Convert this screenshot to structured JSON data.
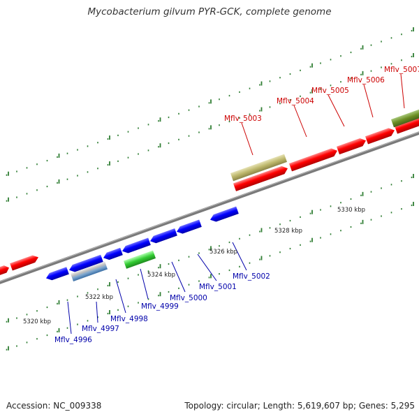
{
  "header": {
    "title": "Mycobacterium gilvum PYR-GCK, complete genome"
  },
  "footer": {
    "accession": "Accession: NC_009338",
    "summary": "Topology: circular; Length: 5,619,607 bp; Genes: 5,295"
  },
  "colors": {
    "forward_gene": "#ff0000",
    "reverse_gene": "#0000ff",
    "forward_label": "#cc0000",
    "reverse_label": "#0000aa",
    "tick": "#2e7d32",
    "backbone": "#7a7a7a"
  },
  "scale": {
    "unit": "kbp",
    "ticks": [
      {
        "label": "5320 kbp",
        "value": 5320
      },
      {
        "label": "5322 kbp",
        "value": 5322
      },
      {
        "label": "5324 kbp",
        "value": 5324
      },
      {
        "label": "5326 kbp",
        "value": 5326
      },
      {
        "label": "5328 kbp",
        "value": 5328
      },
      {
        "label": "5330 kbp",
        "value": 5330
      }
    ]
  },
  "forward_labels": [
    "Mflv_5003",
    "Mflv_5004",
    "Mflv_5005",
    "Mflv_5006",
    "Mflv_5007"
  ],
  "reverse_labels": [
    "Mflv_4996",
    "Mflv_4997",
    "Mflv_4998",
    "Mflv_4999",
    "Mflv_5000",
    "Mflv_5001",
    "Mflv_5002"
  ]
}
